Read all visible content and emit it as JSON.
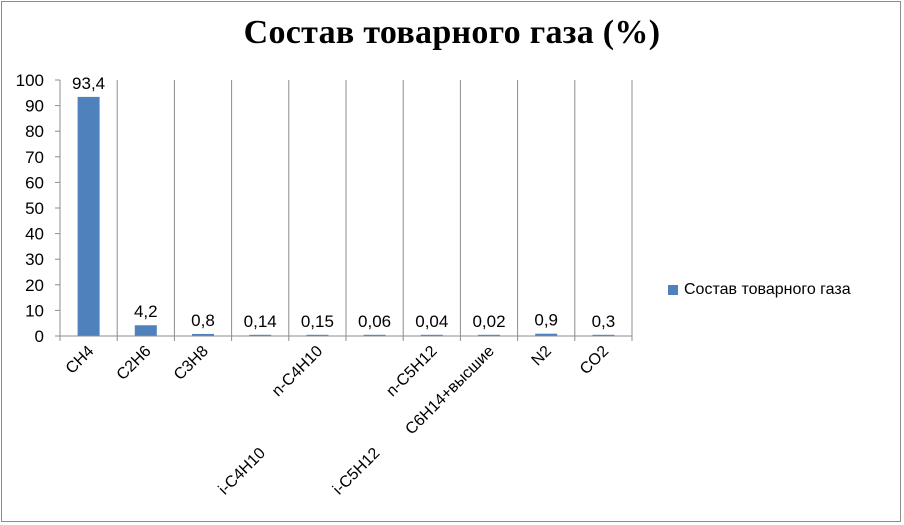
{
  "chart_data": {
    "type": "bar",
    "title": "Состав товарного газа (%)",
    "categories": [
      "CH4",
      "C2H6",
      "C3H8",
      "i-C4H10",
      "n-C4H10",
      "i-C5H12",
      "n-C5H12",
      "C6H14+высшие",
      "N2",
      "CO2"
    ],
    "series": [
      {
        "name": "Состав товарного газа",
        "values": [
          93.4,
          4.2,
          0.8,
          0.14,
          0.15,
          0.06,
          0.04,
          0.02,
          0.9,
          0.3
        ],
        "labels": [
          "93,4",
          "4,2",
          "0,8",
          "0,14",
          "0,15",
          "0,06",
          "0,04",
          "0,02",
          "0,9",
          "0,3"
        ],
        "color": "#4f81bd"
      }
    ],
    "ylim": [
      0,
      100
    ],
    "yticks": [
      0,
      10,
      20,
      30,
      40,
      50,
      60,
      70,
      80,
      90,
      100
    ],
    "grid": "vertical",
    "legend": "right",
    "xlabel": "",
    "ylabel": ""
  }
}
